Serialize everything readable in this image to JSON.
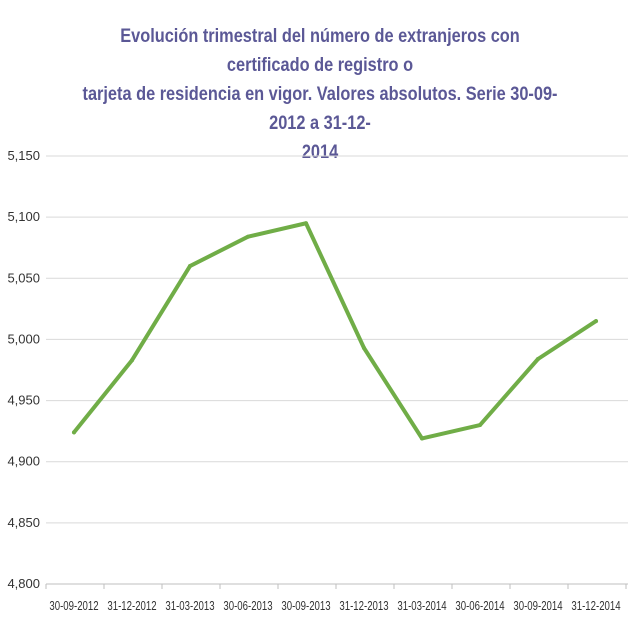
{
  "chart_data": {
    "type": "line",
    "title": "Evolución trimestral del número de extranjeros con certificado de registro o tarjeta de residencia en vigor. Valores absolutos. Serie 30-09-2012 a 31-12-2014",
    "title_lines": [
      "Evolución trimestral del número de extranjeros con certificado de registro o",
      "tarjeta de residencia en vigor. Valores absolutos. Serie 30-09-2012 a 31-12-",
      "2014"
    ],
    "categories": [
      "30-09-2012",
      "31-12-2012",
      "31-03-2013",
      "30-06-2013",
      "30-09-2013",
      "31-12-2013",
      "31-03-2014",
      "30-06-2014",
      "30-09-2014",
      "31-12-2014"
    ],
    "series": [
      {
        "values": [
          4924,
          4983,
          5060,
          5084,
          5095,
          4993,
          4919,
          4930,
          4984,
          5015
        ],
        "color": "#70ad47"
      }
    ],
    "y_ticks": [
      "4,800",
      "4,850",
      "4,900",
      "4,950",
      "5,000",
      "5,050",
      "5,100",
      "5,150"
    ],
    "ylim": [
      4800,
      5150
    ],
    "xlabel": "",
    "ylabel": "",
    "grid": true,
    "legend": "none",
    "gridline_color": "#d9d9d9",
    "title_color": "#5b5896"
  }
}
